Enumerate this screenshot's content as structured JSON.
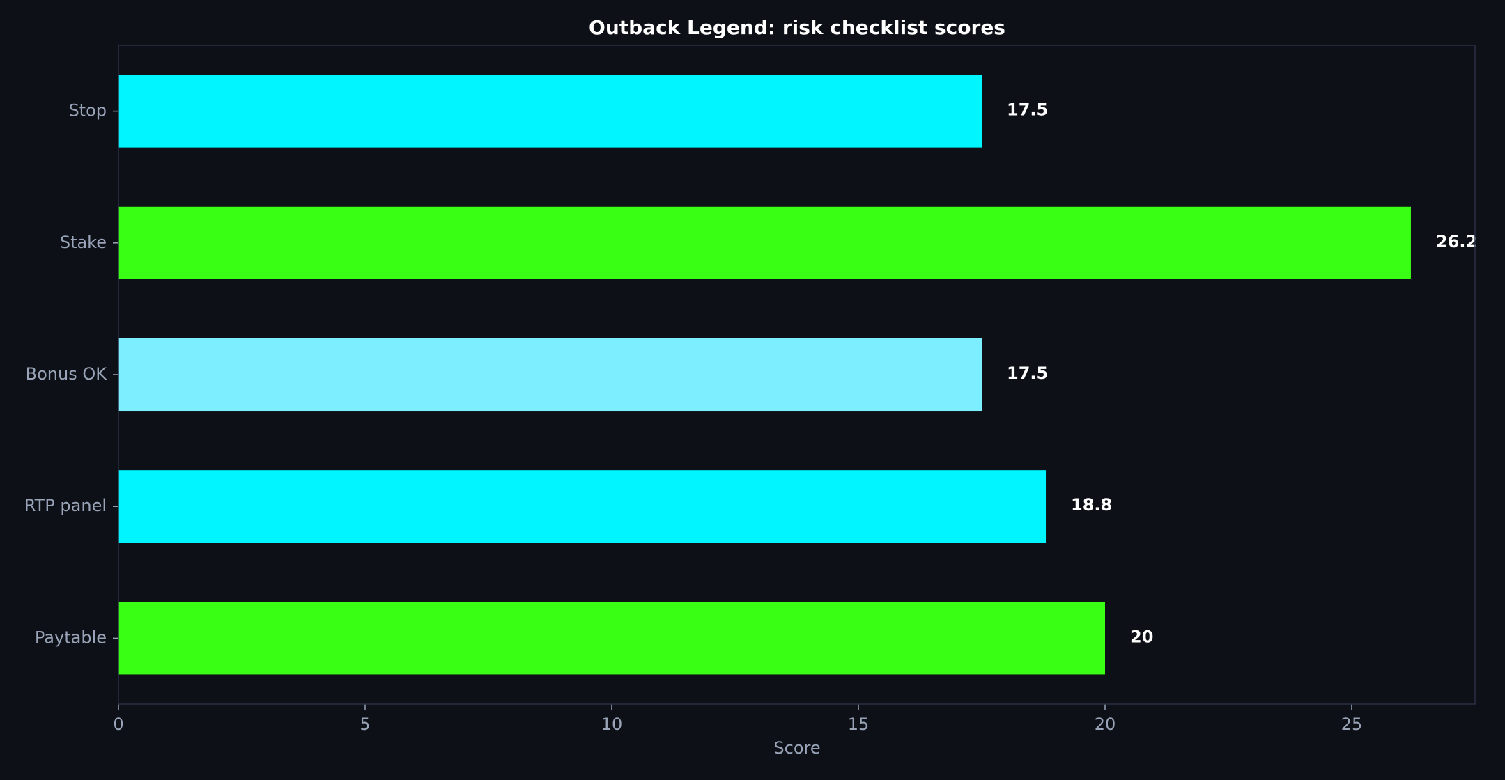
{
  "chart_data": {
    "type": "bar",
    "orientation": "horizontal",
    "title": "Outback Legend: risk checklist scores",
    "xlabel": "Score",
    "ylabel": "",
    "categories": [
      "Paytable",
      "RTP panel",
      "Bonus OK",
      "Stake",
      "Stop"
    ],
    "values": [
      20,
      18.8,
      17.5,
      26.2,
      17.5
    ],
    "value_labels": [
      "20",
      "18.8",
      "17.5",
      "26.2",
      "17.5"
    ],
    "bar_colors": [
      "#39ff14",
      "#00f5ff",
      "#7deeff",
      "#39ff14",
      "#00f5ff"
    ],
    "xlim": [
      0,
      27.5
    ],
    "xticks": [
      0,
      5,
      10,
      15,
      20,
      25
    ],
    "xtick_labels": [
      "0",
      "5",
      "10",
      "15",
      "20",
      "25"
    ],
    "grid": false,
    "legend": "none"
  },
  "colors": {
    "background": "#0d1117",
    "axes_frame": "#2a2f45",
    "title_text": "#ffffff",
    "tick_text": "#9aa4b8",
    "data_label_text": "#ffffff"
  }
}
